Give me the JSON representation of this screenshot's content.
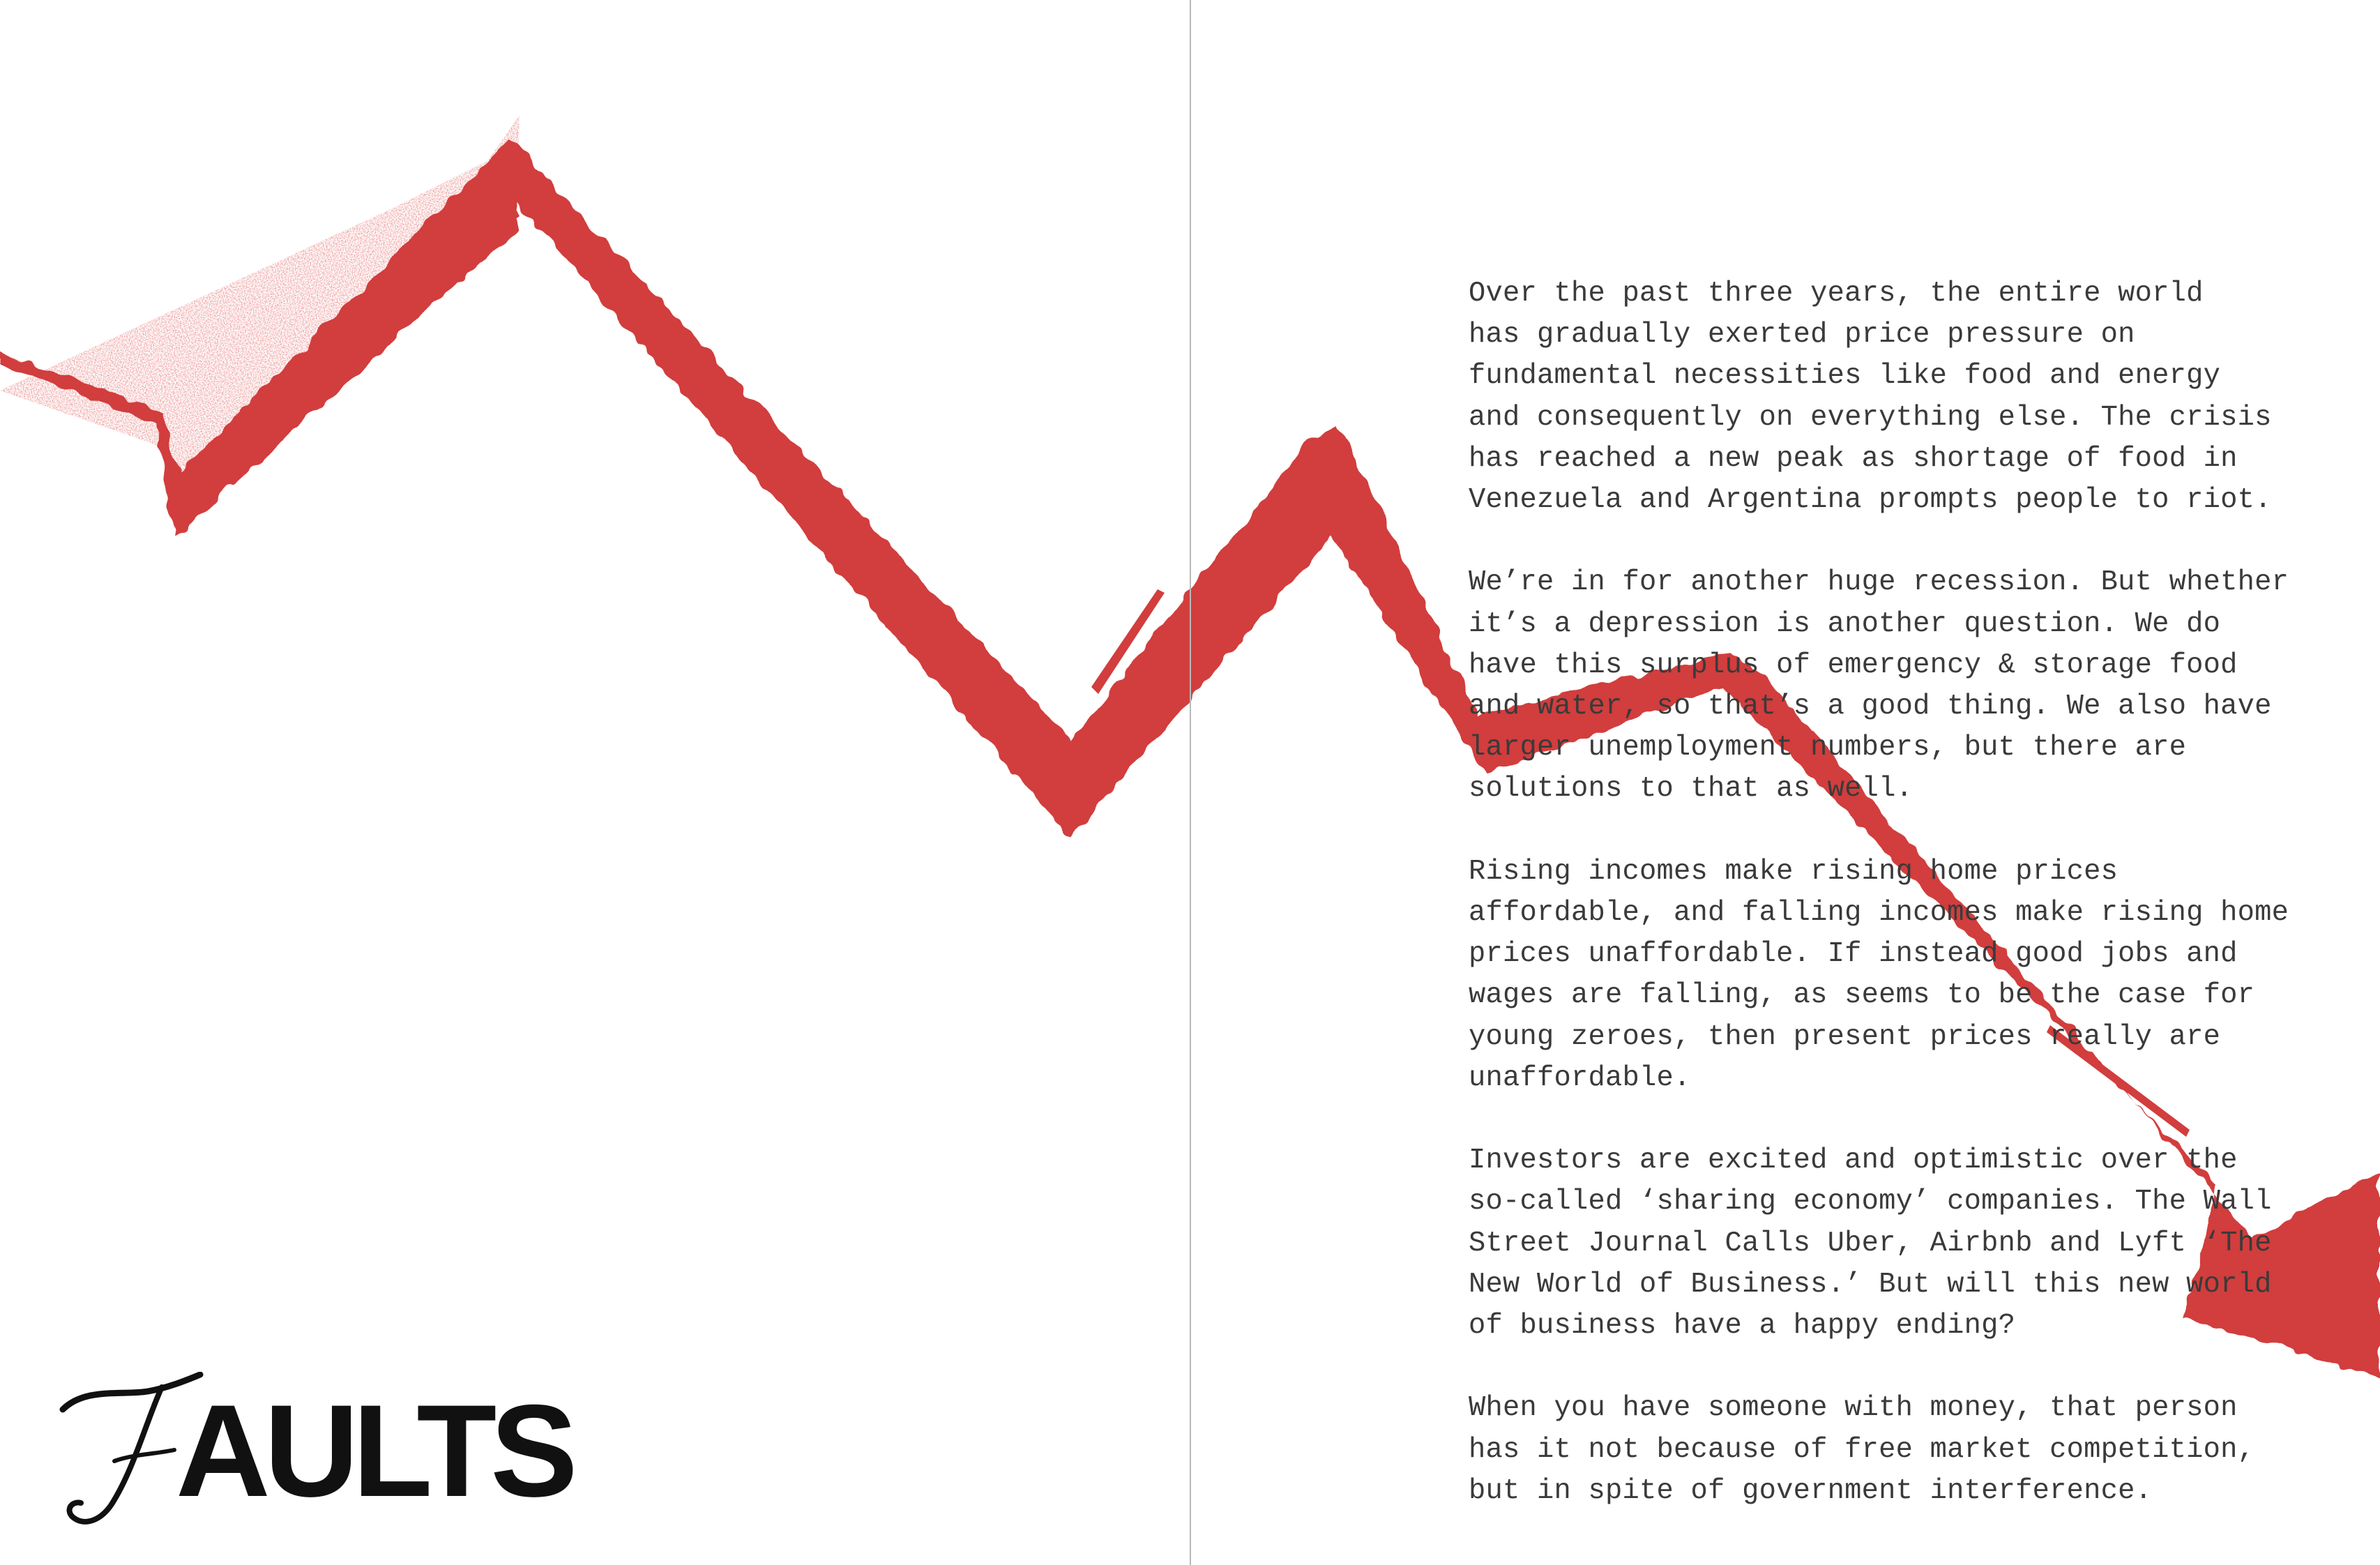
{
  "colors": {
    "arrow": "#d23d3d",
    "text": "#3a3a3a",
    "logo": "#111111",
    "gutter": "#b9b9b9",
    "background": "#ffffff"
  },
  "logo": {
    "word": "AULTS",
    "script_letter": "F"
  },
  "article": {
    "paragraphs": [
      {
        "lines": [
          "Over the past three years, the entire world",
          "has gradually exerted price pressure on",
          "fundamental necessities like food and energy",
          "and consequently on everything else. The crisis",
          "has reached a new peak as shortage of food in",
          "Venezuela and Argentina prompts people to riot."
        ]
      },
      {
        "lines": [
          "We’re in for another huge recession. But whether",
          "it’s a depression is another question. We do",
          "have this surplus of emergency & storage food",
          "and water, so that’s a good thing. We also have",
          "larger unemployment numbers, but there are",
          "solutions to that as well."
        ]
      },
      {
        "lines": [
          "Rising incomes make rising home prices",
          "affordable, and falling incomes make rising home",
          "prices unaffordable. If instead good jobs and",
          "wages are falling, as seems to be the case for",
          "young zeroes, then present prices really are",
          "unaffordable."
        ]
      },
      {
        "lines": [
          "Investors are excited and optimistic over the",
          "so-called ‘sharing economy’ companies. The Wall",
          "Street Journal Calls Uber, Airbnb and Lyft ‘The",
          "New World of Business.’ But will this new world",
          "of business have a happy ending?"
        ]
      },
      {
        "lines": [
          "When you have someone with money, that person",
          "has it not because of free market competition,",
          "but in spite of government interference."
        ]
      }
    ]
  }
}
